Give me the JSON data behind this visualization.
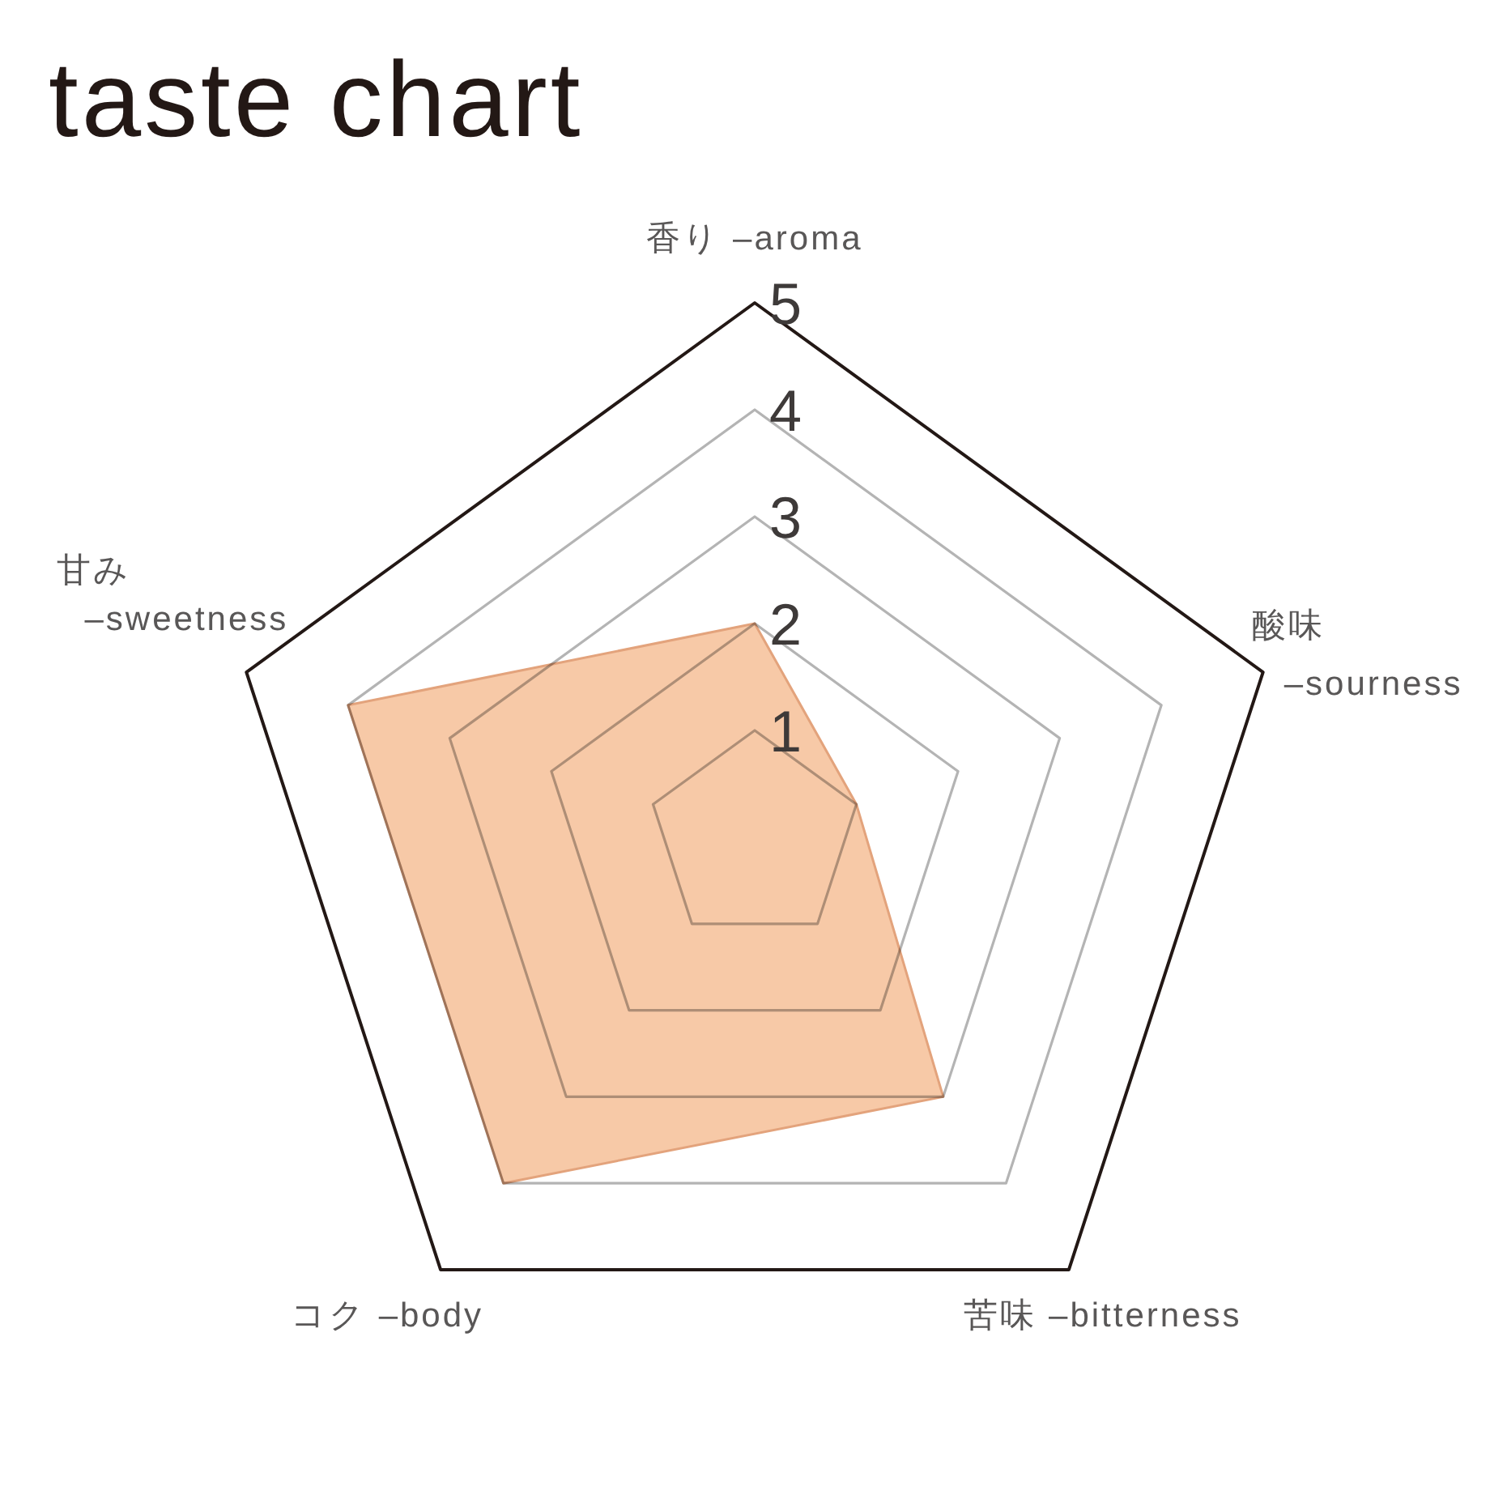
{
  "chart_data": {
    "type": "radar",
    "title": "taste chart",
    "categories": [
      "香り –aroma",
      "酸味 –sourness",
      "苦味 –bitterness",
      "コク –body",
      "甘み –sweetness"
    ],
    "series": [
      {
        "color": "#f7c9a7",
        "values": [
          2,
          1,
          3,
          4,
          4
        ]
      }
    ],
    "ylim": [
      0,
      5
    ],
    "yticks": [
      1,
      2,
      3,
      4,
      5
    ],
    "grid": true
  }
}
